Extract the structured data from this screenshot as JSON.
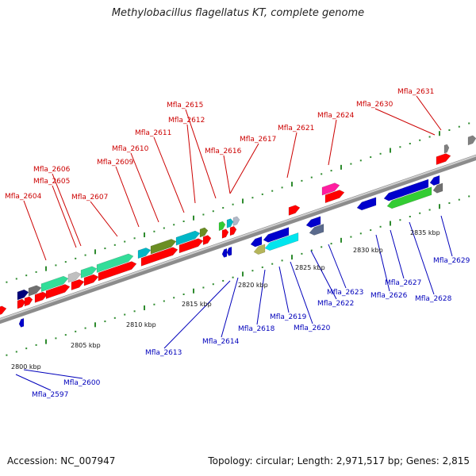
{
  "title": "Methylobacillus flagellatus KT, complete genome",
  "footer": {
    "accession": "Accession: NC_007947",
    "summary": "Topology: circular; Length: 2,971,517 bp; Genes: 2,815"
  },
  "colors": {
    "forward_label": "#cc0000",
    "reverse_label": "#0000bb",
    "backbone": "#8c8c8c",
    "tick": "#2e8b2e"
  },
  "scale_labels": [
    "2800 kbp",
    "2805 kbp",
    "2810 kbp",
    "2815 kbp",
    "2820 kbp",
    "2825 kbp",
    "2830 kbp",
    "2835 kbp"
  ],
  "forward_genes": [
    "Mfla_2604",
    "Mfla_2605",
    "Mfla_2606",
    "Mfla_2607",
    "Mfla_2609",
    "Mfla_2610",
    "Mfla_2611",
    "Mfla_2612",
    "Mfla_2615",
    "Mfla_2616",
    "Mfla_2617",
    "Mfla_2621",
    "Mfla_2624",
    "Mfla_2630",
    "Mfla_2631"
  ],
  "reverse_genes": [
    "Mfla_2597",
    "Mfla_2600",
    "Mfla_2613",
    "Mfla_2614",
    "Mfla_2618",
    "Mfla_2619",
    "Mfla_2620",
    "Mfla_2622",
    "Mfla_2623",
    "Mfla_2626",
    "Mfla_2627",
    "Mfla_2628",
    "Mfla_2629"
  ]
}
